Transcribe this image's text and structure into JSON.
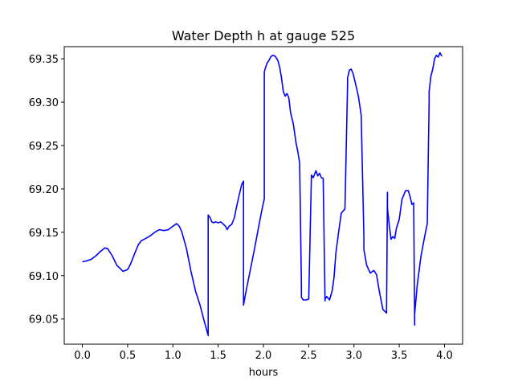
{
  "chart_data": {
    "type": "line",
    "title": "Water Depth h at gauge 525",
    "xlabel": "hours",
    "ylabel": "",
    "xlim": [
      -0.2,
      4.2
    ],
    "ylim": [
      69.021,
      69.364
    ],
    "xticks": [
      0.0,
      0.5,
      1.0,
      1.5,
      2.0,
      2.5,
      3.0,
      3.5,
      4.0
    ],
    "xtick_labels": [
      "0.0",
      "0.5",
      "1.0",
      "1.5",
      "2.0",
      "2.5",
      "3.0",
      "3.5",
      "4.0"
    ],
    "yticks": [
      69.05,
      69.1,
      69.15,
      69.2,
      69.25,
      69.3,
      69.35
    ],
    "ytick_labels": [
      "69.05",
      "69.10",
      "69.15",
      "69.20",
      "69.25",
      "69.30",
      "69.35"
    ],
    "grid": false,
    "series": [
      {
        "color": "#0000ff",
        "x": [
          0.0,
          0.05,
          0.1,
          0.15,
          0.2,
          0.25,
          0.28,
          0.33,
          0.38,
          0.45,
          0.5,
          0.53,
          0.58,
          0.62,
          0.65,
          0.7,
          0.75,
          0.8,
          0.85,
          0.9,
          0.95,
          1.0,
          1.04,
          1.07,
          1.1,
          1.15,
          1.2,
          1.25,
          1.3,
          1.35,
          1.39,
          1.39,
          1.41,
          1.43,
          1.45,
          1.47,
          1.5,
          1.53,
          1.55,
          1.58,
          1.6,
          1.62,
          1.65,
          1.68,
          1.7,
          1.73,
          1.76,
          1.78,
          1.78,
          1.8,
          1.85,
          1.9,
          1.95,
          1.98,
          2.01,
          2.01,
          2.02,
          2.04,
          2.06,
          2.08,
          2.1,
          2.13,
          2.16,
          2.18,
          2.2,
          2.22,
          2.24,
          2.26,
          2.28,
          2.3,
          2.33,
          2.36,
          2.38,
          2.4,
          2.42,
          2.42,
          2.44,
          2.47,
          2.5,
          2.53,
          2.53,
          2.55,
          2.58,
          2.6,
          2.62,
          2.64,
          2.66,
          2.68,
          2.68,
          2.7,
          2.73,
          2.76,
          2.78,
          2.8,
          2.83,
          2.86,
          2.9,
          2.93,
          2.93,
          2.95,
          2.97,
          2.99,
          3.02,
          3.05,
          3.08,
          3.11,
          3.11,
          3.14,
          3.18,
          3.22,
          3.25,
          3.28,
          3.32,
          3.36,
          3.37,
          3.37,
          3.39,
          3.41,
          3.43,
          3.45,
          3.47,
          3.5,
          3.53,
          3.57,
          3.6,
          3.62,
          3.64,
          3.66,
          3.67,
          3.67,
          3.7,
          3.74,
          3.78,
          3.81,
          3.83,
          3.83,
          3.85,
          3.87,
          3.89,
          3.91,
          3.93,
          3.95,
          3.97,
          3.98
        ]
      }
    ]
  }
}
